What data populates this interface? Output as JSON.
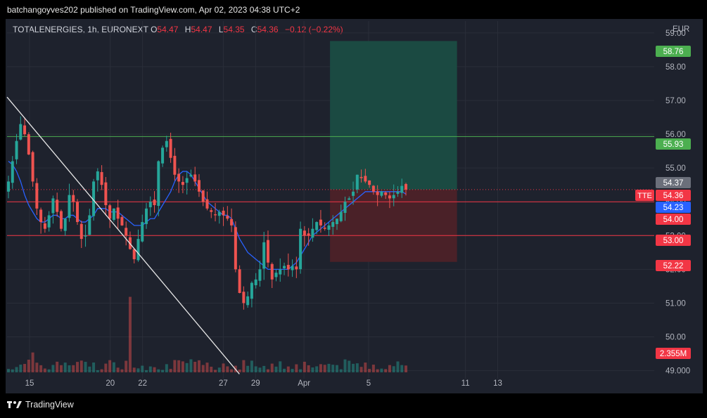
{
  "header": {
    "publish_line": "batchangoyves202 published on TradingView.com, Apr 02, 2023 04:38 UTC+2"
  },
  "symbol": {
    "name": "TOTALENERGIES, 1h, EURONEXT",
    "open_label": "O",
    "open": "54.47",
    "high_label": "H",
    "high": "54.47",
    "low_label": "L",
    "low": "54.35",
    "close_label": "C",
    "close": "54.36",
    "change": "−0.12 (−0.22%)"
  },
  "footer": {
    "brand": "TradingView",
    "logo_text": "17"
  },
  "colors": {
    "up": "#26a69a",
    "down": "#ef5350",
    "ma": "#2962ff",
    "level_green": "#4caf50",
    "level_red": "#f23645",
    "profit_zone": "#1b4a42",
    "loss_zone": "#4a2128",
    "trendline": "#e8e8e8",
    "grid": "#2a2e39",
    "axis_text": "#b2b5be"
  },
  "chart_data": {
    "type": "candlestick",
    "title": "TOTALENERGIES, 1h, EURONEXT",
    "currency": "EUR",
    "y_ticks": [
      "59.00",
      "58.00",
      "57.00",
      "56.00",
      "55.00",
      "54.00",
      "53.00",
      "52.00",
      "51.00",
      "50.00",
      "49.000"
    ],
    "x_ticks": [
      {
        "label": "15",
        "date": "2023-03-15"
      },
      {
        "label": "20",
        "date": "2023-03-20"
      },
      {
        "label": "22",
        "date": "2023-03-22"
      },
      {
        "label": "27",
        "date": "2023-03-27"
      },
      {
        "label": "29",
        "date": "2023-03-29"
      },
      {
        "label": "Apr",
        "date": "2023-04-01"
      },
      {
        "label": "5",
        "date": "2023-04-05"
      },
      {
        "label": "11",
        "date": "2023-04-11"
      },
      {
        "label": "13",
        "date": "2023-04-13"
      }
    ],
    "ylim": [
      48.95,
      59.35
    ],
    "closes": [
      54.6,
      55.2,
      55.8,
      56.3,
      56.0,
      55.4,
      54.6,
      53.8,
      53.4,
      53.2,
      53.6,
      54.1,
      53.7,
      53.2,
      53.5,
      54.2,
      54.0,
      53.4,
      52.9,
      53.0,
      53.6,
      54.6,
      54.9,
      54.5,
      53.9,
      53.5,
      53.8,
      53.5,
      53.3,
      53.0,
      52.6,
      52.3,
      52.9,
      53.4,
      53.8,
      54.0,
      53.9,
      55.2,
      55.6,
      55.8,
      55.3,
      54.8,
      54.6,
      54.5,
      54.7,
      54.8,
      54.6,
      54.3,
      54.0,
      53.8,
      53.7,
      53.6,
      53.7,
      53.6,
      53.5,
      53.3,
      52.0,
      51.3,
      51.0,
      51.2,
      51.6,
      51.7,
      52.0,
      52.8,
      52.2,
      51.7,
      51.9,
      52.0,
      52.1,
      52.0,
      52.1,
      52.0,
      53.2,
      53.0,
      53.0,
      53.2,
      53.4,
      53.3,
      53.2,
      53.3,
      53.4,
      53.5,
      53.7,
      54.0,
      54.1,
      54.3,
      54.8,
      54.7,
      54.6,
      54.5,
      54.3,
      54.2,
      54.3,
      54.2,
      54.1,
      54.2,
      54.3,
      54.47,
      54.36
    ],
    "ma_values": [
      55.2,
      55.1,
      54.9,
      54.6,
      54.2,
      53.9,
      53.7,
      53.5,
      53.4,
      53.4,
      53.5,
      53.6,
      53.6,
      53.5,
      53.5,
      53.6,
      53.6,
      53.5,
      53.4,
      53.4,
      53.5,
      53.6,
      53.8,
      53.8,
      53.8,
      53.7,
      53.7,
      53.7,
      53.6,
      53.5,
      53.4,
      53.3,
      53.3,
      53.3,
      53.4,
      53.5,
      53.5,
      53.7,
      53.9,
      54.1,
      54.3,
      54.6,
      54.8,
      54.9,
      54.9,
      54.8,
      54.6,
      54.4,
      54.2,
      54.0,
      53.9,
      53.8,
      53.7,
      53.6,
      53.6,
      53.5,
      53.2,
      52.9,
      52.7,
      52.5,
      52.4,
      52.3,
      52.2,
      52.1,
      52.0,
      52.0,
      52.0,
      52.0,
      52.0,
      52.0,
      52.1,
      52.2,
      52.4,
      52.6,
      52.8,
      53.0,
      53.1,
      53.2,
      53.3,
      53.4,
      53.5,
      53.6,
      53.7,
      53.8,
      53.9,
      54.0,
      54.1,
      54.2,
      54.3,
      54.3,
      54.3,
      54.3,
      54.3,
      54.3,
      54.3,
      54.3,
      54.3,
      54.3,
      54.23
    ],
    "volume_axis_label": "2.355M",
    "horizontal_levels": [
      {
        "value": 55.93,
        "label": "55.93",
        "kind": "green"
      },
      {
        "value": 54.0,
        "label": "54.00",
        "kind": "red"
      },
      {
        "value": 53.0,
        "label": "53.00",
        "kind": "red"
      }
    ],
    "price_markers": [
      {
        "value": 58.76,
        "label": "58.76",
        "kind": "green"
      },
      {
        "value": 54.37,
        "label": "54.37",
        "kind": "gray"
      },
      {
        "value": 54.36,
        "label": "54.36",
        "kind": "red",
        "tag": "TTE"
      },
      {
        "value": 54.23,
        "label": "54.23",
        "kind": "blue"
      },
      {
        "value": 52.22,
        "label": "52.22",
        "kind": "red"
      }
    ],
    "position_box": {
      "entry": 54.36,
      "target": 58.76,
      "stop": 52.22,
      "from_date": "2023-04-02",
      "to_date": "2023-04-11"
    },
    "trendline": {
      "from": {
        "date": "2023-03-14",
        "price": 57.1
      },
      "to": {
        "date": "2023-03-28",
        "price": 48.9
      }
    }
  }
}
